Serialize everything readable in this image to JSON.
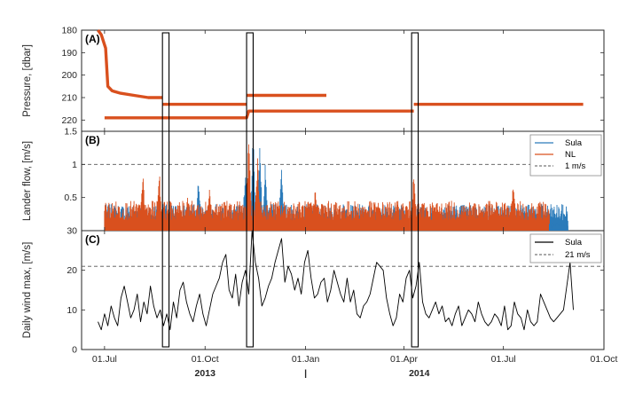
{
  "chart_data": [
    {
      "type": "line",
      "panel_label": "(A)",
      "ylabel": "Pressure, [dbar]",
      "ylim": [
        180,
        225
      ],
      "y_reversed": true,
      "yticks": [
        180,
        190,
        200,
        210,
        220
      ],
      "colors": {
        "line": "#d9501e"
      },
      "series": [
        {
          "name": "",
          "points": [
            [
              "2013-06-25",
              180
            ],
            [
              "2013-06-28",
              182
            ],
            [
              "2013-07-02",
              188
            ],
            [
              "2013-07-04",
              205
            ],
            [
              "2013-07-08",
              207
            ],
            [
              "2013-07-15",
              208
            ],
            [
              "2013-07-28",
              209
            ],
            [
              "2013-08-10",
              210
            ],
            [
              "2013-08-23",
              210
            ]
          ]
        },
        {
          "name": "",
          "points": [
            [
              "2013-08-23",
              213
            ],
            [
              "2013-11-08",
              213
            ]
          ]
        },
        {
          "name": "",
          "points": [
            [
              "2013-11-08",
              209
            ],
            [
              "2014-01-20",
              209
            ]
          ]
        },
        {
          "name": "",
          "points": [
            [
              "2013-07-01",
              219
            ],
            [
              "2013-11-08",
              219
            ],
            [
              "2013-11-10",
              216
            ],
            [
              "2014-04-10",
              216
            ]
          ]
        },
        {
          "name": "",
          "points": [
            [
              "2014-04-10",
              213
            ],
            [
              "2014-09-12",
              213
            ]
          ]
        }
      ]
    },
    {
      "type": "line",
      "panel_label": "(B)",
      "ylabel": "Lander flow, [m/s]",
      "ylim": [
        0,
        1.5
      ],
      "yticks": [
        0.5,
        1,
        1.5
      ],
      "ytick_labels": [
        "0.5",
        "1",
        "1.5"
      ],
      "colors": {
        "Sula": "#2b7bba",
        "NL": "#d9501e",
        "ref": "#555555"
      },
      "legend": {
        "placement": "top-right",
        "entries": [
          "Sula",
          "NL",
          "1 m/s"
        ]
      },
      "reference_line": {
        "name": "1 m/s",
        "y": 1.0
      },
      "series": [
        {
          "name": "Sula",
          "x_range": [
            "2013-07-01",
            "2014-08-29"
          ],
          "typical_range": [
            0.0,
            0.4
          ],
          "peaks": [
            [
              "2013-09-25",
              0.85
            ],
            [
              "2013-11-07",
              1.05
            ],
            [
              "2013-11-14",
              1.5
            ],
            [
              "2013-11-20",
              1.35
            ],
            [
              "2013-11-25",
              1.0
            ],
            [
              "2013-12-10",
              1.05
            ]
          ]
        },
        {
          "name": "NL",
          "x_range": [
            "2013-07-01",
            "2014-08-12"
          ],
          "typical_range": [
            0.0,
            0.45
          ],
          "peaks": [
            [
              "2013-08-05",
              0.95
            ],
            [
              "2013-08-20",
              1.0
            ],
            [
              "2013-09-15",
              0.6
            ],
            [
              "2013-10-05",
              0.75
            ],
            [
              "2013-11-10",
              1.5
            ],
            [
              "2013-11-18",
              1.1
            ],
            [
              "2014-01-10",
              0.7
            ],
            [
              "2014-04-10",
              0.9
            ],
            [
              "2014-07-10",
              0.75
            ]
          ]
        }
      ]
    },
    {
      "type": "line",
      "panel_label": "(C)",
      "ylabel": "Daily wind max, [m/s]",
      "ylim": [
        0,
        30
      ],
      "yticks": [
        0,
        10,
        20,
        30
      ],
      "ytick_labels": [
        "0",
        "10",
        "20",
        "30"
      ],
      "colors": {
        "Sula": "#000000",
        "ref": "#555555"
      },
      "legend": {
        "placement": "top-right",
        "entries": [
          "Sula",
          "21 m/s"
        ]
      },
      "reference_line": {
        "name": "21 m/s",
        "y": 21
      },
      "series": [
        {
          "name": "Sula",
          "x_start": "2013-06-25",
          "x_step_days": 3,
          "values": [
            7,
            5,
            9,
            6,
            11,
            8,
            6,
            13,
            16,
            12,
            8,
            10,
            14,
            7,
            12,
            9,
            16,
            11,
            8,
            10,
            6,
            9,
            5,
            12,
            8,
            15,
            17,
            12,
            9,
            7,
            11,
            14,
            9,
            6,
            10,
            14,
            16,
            18,
            22,
            24,
            15,
            13,
            19,
            11,
            17,
            20,
            14,
            30,
            22,
            18,
            11,
            13,
            16,
            18,
            22,
            25,
            28,
            17,
            21,
            19,
            15,
            18,
            14,
            22,
            25,
            18,
            13,
            14,
            17,
            18,
            12,
            15,
            20,
            17,
            14,
            12,
            18,
            12,
            15,
            9,
            8,
            11,
            12,
            14,
            18,
            22,
            21,
            20,
            13,
            9,
            6,
            8,
            14,
            12,
            18,
            20,
            13,
            16,
            22,
            12,
            9,
            8,
            10,
            12,
            9,
            11,
            7,
            8,
            6,
            9,
            11,
            6,
            8,
            10,
            9,
            7,
            12,
            9,
            7,
            6,
            7,
            9,
            8,
            6,
            11,
            5,
            6,
            12,
            9,
            8,
            5,
            10,
            7,
            6,
            7,
            14,
            12,
            10,
            8,
            7,
            8,
            9,
            10,
            16,
            22,
            10
          ]
        }
      ]
    }
  ],
  "x_axis": {
    "range": [
      "2013-06-10",
      "2014-10-01"
    ],
    "ticks": [
      {
        "date": "2013-07-01",
        "label": "01.Jul"
      },
      {
        "date": "2013-10-01",
        "label": "01.Oct"
      },
      {
        "date": "2014-01-01",
        "label": "01.Jan"
      },
      {
        "date": "2014-04-01",
        "label": "01.Apr"
      },
      {
        "date": "2014-07-01",
        "label": "01.Jul"
      },
      {
        "date": "2014-10-01",
        "label": "01.Oct"
      }
    ],
    "year_labels": [
      {
        "text": "2013",
        "center_date": "2013-10-01"
      },
      {
        "text": "|",
        "center_date": "2014-01-01"
      },
      {
        "text": "2014",
        "center_date": "2014-04-15"
      }
    ]
  },
  "highlight_boxes": [
    {
      "start": "2013-08-23",
      "end": "2013-08-29"
    },
    {
      "start": "2013-11-08",
      "end": "2013-11-14"
    },
    {
      "start": "2014-04-08",
      "end": "2014-04-14"
    }
  ]
}
